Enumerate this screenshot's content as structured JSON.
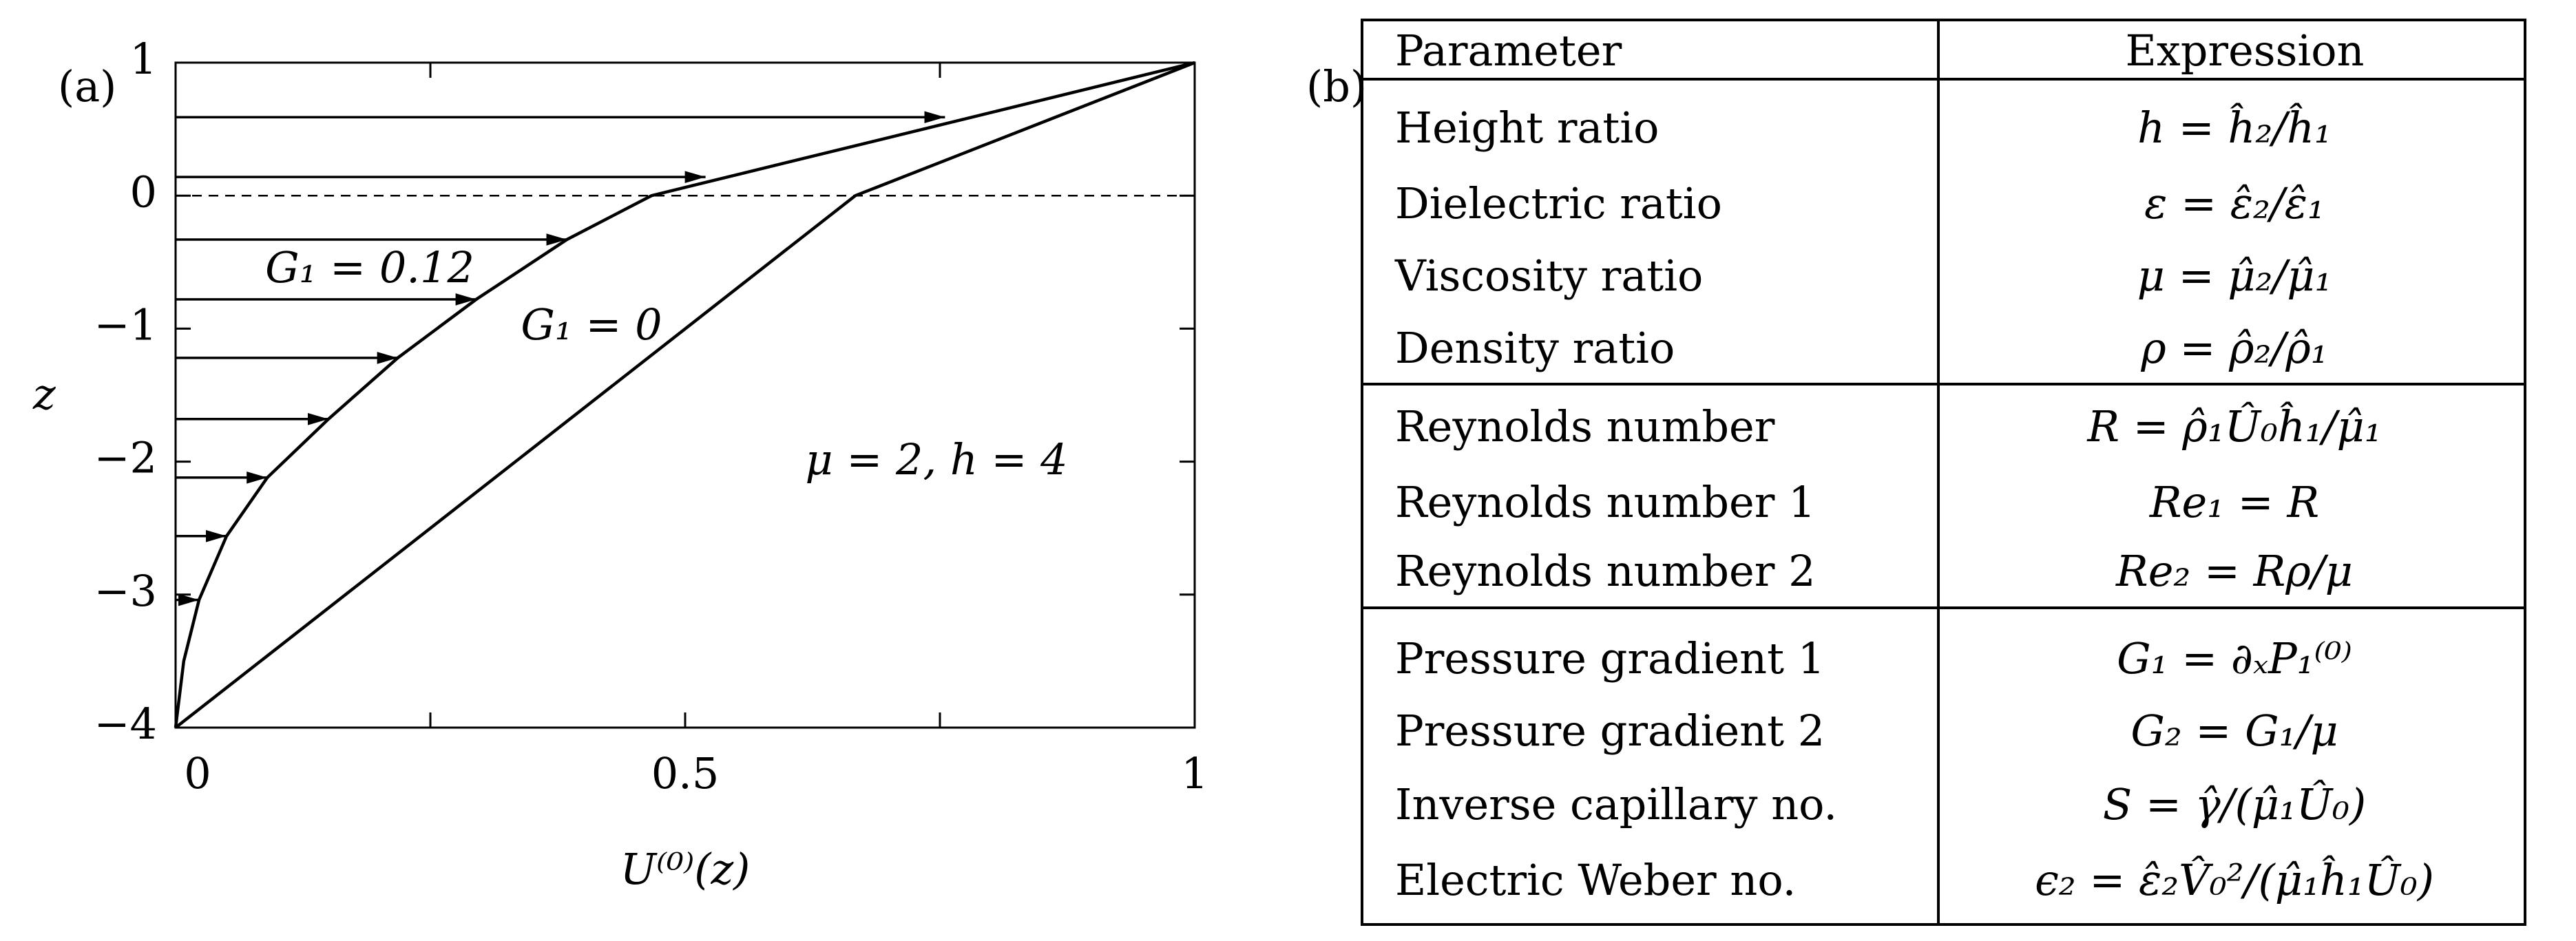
{
  "chart_data": {
    "type": "line",
    "panel_label": "(a)",
    "xlabel": "U⁽⁰⁾(z)",
    "ylabel": "z",
    "xlim": [
      0,
      1
    ],
    "ylim": [
      -4,
      1
    ],
    "xticks": [
      0,
      0.5,
      1
    ],
    "xminor": [
      0.25,
      0.75
    ],
    "yticks": [
      {
        "value": -4,
        "label": "−4"
      },
      {
        "value": -3,
        "label": "−3"
      },
      {
        "value": -2,
        "label": "−2"
      },
      {
        "value": -1,
        "label": "−1"
      },
      0,
      1
    ],
    "hline": 0,
    "color": "#000000",
    "annotation": "μ = 2, h = 4",
    "series": [
      {
        "name": "G₁ = 0.12",
        "x": [
          0,
          0.008,
          0.023,
          0.05,
          0.09,
          0.15,
          0.218,
          0.295,
          0.384,
          0.467,
          1
        ],
        "values": [
          -4,
          -3.5,
          -3.04,
          -2.56,
          -2.12,
          -1.68,
          -1.22,
          -0.78,
          -0.33,
          0,
          1
        ]
      },
      {
        "name": "G₁ = 0",
        "x": [
          0,
          0.667,
          1
        ],
        "values": [
          -4,
          0,
          1
        ]
      }
    ],
    "arrows": {
      "x": [
        0.023,
        0.05,
        0.09,
        0.15,
        0.218,
        0.295,
        0.384,
        0.52,
        0.755
      ],
      "values": [
        -3.04,
        -2.56,
        -2.12,
        -1.68,
        -1.22,
        -0.78,
        -0.33,
        0.14,
        0.59
      ]
    }
  },
  "table": {
    "panel_label": "(b)",
    "header": [
      "Parameter",
      "Expression"
    ],
    "groups": [
      [
        [
          "Height ratio",
          "h = ĥ₂/ĥ₁"
        ],
        [
          "Dielectric ratio",
          "ε = ε̂₂/ε̂₁"
        ],
        [
          "Viscosity ratio",
          "μ = μ̂₂/μ̂₁"
        ],
        [
          "Density ratio",
          "ρ = ρ̂₂/ρ̂₁"
        ]
      ],
      [
        [
          "Reynolds number",
          "R = ρ̂₁Û₀ĥ₁/μ̂₁"
        ],
        [
          "Reynolds number 1",
          "Re₁ = R"
        ],
        [
          "Reynolds number 2",
          "Re₂ = Rρ/μ"
        ]
      ],
      [
        [
          "Pressure gradient 1",
          "G₁ = ∂ₓP₁⁽⁰⁾"
        ],
        [
          "Pressure gradient 2",
          "G₂ = G₁/μ"
        ],
        [
          "Inverse capillary no.",
          "S = γ̂/(μ̂₁Û₀)"
        ],
        [
          "Electric Weber no.",
          "ϵ₂ = ε̂₂V̂₀²/(μ̂₁ĥ₁Û₀)"
        ]
      ]
    ]
  }
}
